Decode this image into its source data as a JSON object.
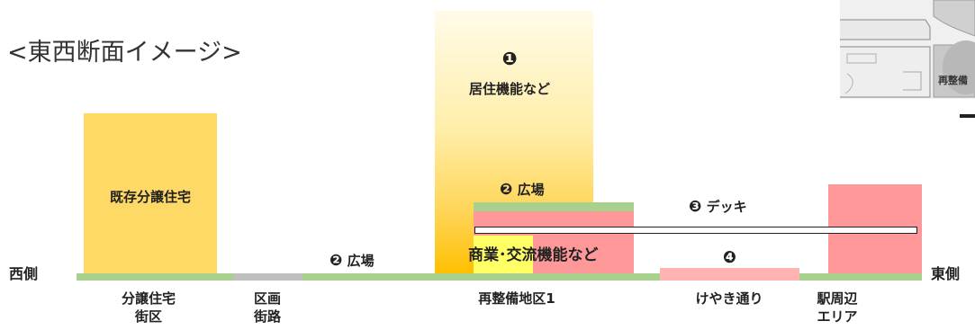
{
  "title": "<東西断面イメージ>",
  "inset": {
    "label": "再整備"
  },
  "sides": {
    "west": "西側",
    "east": "東側"
  },
  "features": {
    "residential": {
      "marker": "❶",
      "label": "居住機能など"
    },
    "plaza_upper": {
      "marker": "❷",
      "label": "広場"
    },
    "plaza_lower": {
      "marker": "❷",
      "label": "広場"
    },
    "deck": {
      "marker": "❸",
      "label": "デッキ"
    },
    "zelkova_marker": "❹",
    "commercial": "商業･交流機能など",
    "existing_housing": "既存分譲住宅"
  },
  "zones": {
    "housing_block_1": "分譲住宅",
    "housing_block_2": "街区",
    "street_1": "区画",
    "street_2": "街路",
    "redevelopment": "再整備地区1",
    "zelkova": "けやき通り",
    "station_1": "駅周辺",
    "station_2": "エリア"
  },
  "colors": {
    "existing_housing": "#ffd966",
    "commercial_pink": "#ff9999",
    "commercial_yellow": "#ffff66",
    "ground_green": "#a9d18e",
    "ground_grey": "#bfbfbf",
    "zelkova_pink": "#ffb3b3",
    "residential_gradient_top": "#fffbe8",
    "residential_gradient_bottom": "#ffc000"
  }
}
